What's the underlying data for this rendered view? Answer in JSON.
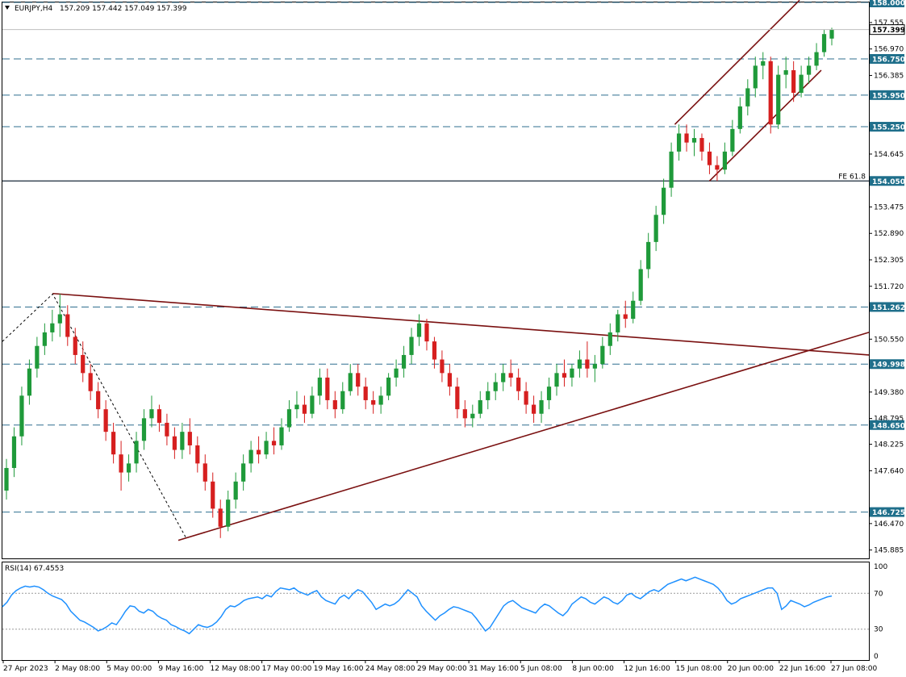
{
  "header": {
    "symbol": "EURJPY,H4",
    "ohlc": "157.209 157.442 157.049 157.399"
  },
  "rsi": {
    "label": "RSI(14) 67.4553",
    "scale_labels": [
      "100",
      "70",
      "30",
      "0"
    ],
    "levels": [
      70,
      30
    ],
    "line_color": "#1e90ff",
    "values": [
      55,
      60,
      68,
      73,
      76,
      78,
      77,
      78,
      77,
      74,
      70,
      67,
      65,
      63,
      58,
      50,
      45,
      40,
      38,
      35,
      32,
      28,
      30,
      33,
      37,
      35,
      42,
      50,
      56,
      55,
      50,
      48,
      52,
      50,
      45,
      42,
      40,
      35,
      33,
      30,
      28,
      25,
      30,
      35,
      33,
      32,
      34,
      38,
      44,
      52,
      56,
      55,
      58,
      62,
      64,
      65,
      66,
      64,
      68,
      66,
      72,
      76,
      75,
      74,
      76,
      72,
      70,
      68,
      71,
      73,
      66,
      62,
      60,
      58,
      65,
      68,
      64,
      70,
      74,
      72,
      66,
      60,
      52,
      55,
      58,
      56,
      58,
      62,
      68,
      74,
      70,
      66,
      56,
      50,
      45,
      40,
      45,
      48,
      52,
      55,
      54,
      52,
      50,
      48,
      42,
      35,
      28,
      32,
      40,
      48,
      56,
      60,
      62,
      58,
      54,
      52,
      50,
      48,
      54,
      58,
      56,
      52,
      48,
      45,
      50,
      58,
      62,
      66,
      64,
      60,
      58,
      62,
      66,
      64,
      60,
      58,
      62,
      68,
      70,
      66,
      64,
      68,
      72,
      74,
      72,
      76,
      80,
      82,
      84,
      86,
      84,
      86,
      88,
      86,
      84,
      82,
      80,
      76,
      70,
      62,
      58,
      60,
      64,
      66,
      68,
      70,
      72,
      74,
      76,
      76,
      70,
      52,
      56,
      62,
      60,
      58,
      55,
      57,
      60,
      62,
      64,
      66,
      67
    ],
    "ylim": [
      0,
      100
    ]
  },
  "chart_data": {
    "type": "candlestick",
    "title": "EURJPY,H4",
    "ylim": [
      145.7,
      158.0
    ],
    "y_ticks": [
      "158.000",
      "157.555",
      "156.970",
      "156.385",
      "155.950",
      "155.250",
      "154.645",
      "154.050",
      "153.475",
      "152.890",
      "152.305",
      "151.720",
      "151.262",
      "150.550",
      "149.998",
      "149.380",
      "148.795",
      "148.650",
      "148.225",
      "147.640",
      "146.725",
      "146.470",
      "145.885"
    ],
    "x_tick_labels": [
      "27 Apr 2023",
      "2 May 08:00",
      "5 May 00:00",
      "9 May 16:00",
      "12 May 08:00",
      "17 May 00:00",
      "19 May 16:00",
      "24 May 08:00",
      "29 May 00:00",
      "31 May 16:00",
      "5 Jun 08:00",
      "8 Jun 00:00",
      "12 Jun 16:00",
      "15 Jun 08:00",
      "20 Jun 00:00",
      "22 Jun 16:00",
      "27 Jun 08:00"
    ],
    "current_price": "157.399",
    "horizontal_levels": [
      {
        "value": 158.0,
        "label": "158.000",
        "style": "dashed"
      },
      {
        "value": 156.75,
        "label": "156.750",
        "style": "dashed"
      },
      {
        "value": 155.95,
        "label": "155.950",
        "style": "dashed"
      },
      {
        "value": 155.25,
        "label": "155.250",
        "style": "dashed"
      },
      {
        "value": 154.05,
        "label": "154.050",
        "style": "solid",
        "annotation": "FE 61.8"
      },
      {
        "value": 151.262,
        "label": "151.262",
        "style": "dashed"
      },
      {
        "value": 149.998,
        "label": "149.998",
        "style": "dashed"
      },
      {
        "value": 148.65,
        "label": "148.650",
        "style": "dashed"
      },
      {
        "value": 146.725,
        "label": "146.725",
        "style": "dashed"
      }
    ],
    "trendlines": [
      {
        "name": "descending-resistance",
        "from": [
          0.058,
          151.56
        ],
        "to": [
          1.0,
          150.2
        ]
      },
      {
        "name": "ascending-support",
        "from": [
          0.203,
          146.1
        ],
        "to": [
          1.0,
          150.7
        ]
      },
      {
        "name": "channel-upper",
        "from": [
          0.776,
          155.3
        ],
        "to": [
          0.92,
          158.05
        ]
      },
      {
        "name": "channel-lower",
        "from": [
          0.816,
          154.05
        ],
        "to": [
          0.945,
          156.5
        ]
      }
    ],
    "fib_zigzag": [
      [
        0.0,
        150.5
      ],
      [
        0.058,
        151.55
      ],
      [
        0.212,
        146.15
      ]
    ],
    "candles": [
      [
        147.2,
        147.9,
        147.0,
        147.7
      ],
      [
        147.7,
        148.6,
        147.5,
        148.4
      ],
      [
        148.4,
        149.5,
        148.2,
        149.3
      ],
      [
        149.3,
        150.1,
        149.1,
        149.9
      ],
      [
        149.9,
        150.6,
        149.7,
        150.4
      ],
      [
        150.4,
        150.9,
        150.2,
        150.7
      ],
      [
        150.7,
        151.2,
        150.5,
        150.9
      ],
      [
        150.9,
        151.55,
        150.6,
        151.1
      ],
      [
        151.1,
        151.3,
        150.4,
        150.6
      ],
      [
        150.6,
        150.8,
        150.0,
        150.2
      ],
      [
        150.2,
        150.5,
        149.6,
        149.8
      ],
      [
        149.8,
        150.0,
        149.2,
        149.4
      ],
      [
        149.4,
        149.6,
        148.8,
        149.0
      ],
      [
        149.0,
        149.2,
        148.3,
        148.5
      ],
      [
        148.5,
        148.7,
        147.8,
        148.0
      ],
      [
        148.0,
        148.3,
        147.2,
        147.6
      ],
      [
        147.6,
        148.0,
        147.4,
        147.8
      ],
      [
        147.8,
        148.5,
        147.6,
        148.3
      ],
      [
        148.3,
        149.0,
        148.1,
        148.8
      ],
      [
        148.8,
        149.3,
        148.6,
        149.0
      ],
      [
        149.0,
        149.1,
        148.5,
        148.7
      ],
      [
        148.7,
        148.9,
        148.2,
        148.4
      ],
      [
        148.4,
        148.6,
        147.9,
        148.1
      ],
      [
        148.1,
        148.7,
        147.9,
        148.5
      ],
      [
        148.5,
        148.8,
        148.0,
        148.2
      ],
      [
        148.2,
        148.4,
        147.6,
        147.8
      ],
      [
        147.8,
        148.0,
        147.2,
        147.4
      ],
      [
        147.4,
        147.6,
        146.6,
        146.8
      ],
      [
        146.8,
        147.0,
        146.15,
        146.4
      ],
      [
        146.4,
        147.2,
        146.3,
        147.0
      ],
      [
        147.0,
        147.6,
        146.8,
        147.4
      ],
      [
        147.4,
        148.0,
        147.2,
        147.8
      ],
      [
        147.8,
        148.3,
        147.6,
        148.1
      ],
      [
        148.1,
        148.4,
        147.8,
        148.0
      ],
      [
        148.0,
        148.5,
        147.9,
        148.3
      ],
      [
        148.3,
        148.6,
        148.0,
        148.2
      ],
      [
        148.2,
        148.8,
        148.1,
        148.6
      ],
      [
        148.6,
        149.2,
        148.5,
        149.0
      ],
      [
        149.0,
        149.4,
        148.8,
        149.1
      ],
      [
        149.1,
        149.3,
        148.7,
        148.9
      ],
      [
        148.9,
        149.5,
        148.8,
        149.3
      ],
      [
        149.3,
        149.9,
        149.1,
        149.7
      ],
      [
        149.7,
        149.9,
        149.0,
        149.2
      ],
      [
        149.2,
        149.4,
        148.8,
        149.0
      ],
      [
        149.0,
        149.6,
        148.9,
        149.4
      ],
      [
        149.4,
        150.0,
        149.3,
        149.8
      ],
      [
        149.8,
        150.0,
        149.3,
        149.5
      ],
      [
        149.5,
        149.7,
        149.0,
        149.2
      ],
      [
        149.2,
        149.4,
        148.9,
        149.1
      ],
      [
        149.1,
        149.5,
        148.9,
        149.3
      ],
      [
        149.3,
        149.8,
        149.2,
        149.7
      ],
      [
        149.7,
        150.1,
        149.5,
        149.9
      ],
      [
        149.9,
        150.4,
        149.7,
        150.2
      ],
      [
        150.2,
        150.8,
        150.0,
        150.6
      ],
      [
        150.6,
        151.1,
        150.4,
        150.9
      ],
      [
        150.9,
        151.0,
        150.3,
        150.5
      ],
      [
        150.5,
        150.6,
        149.9,
        150.1
      ],
      [
        150.1,
        150.3,
        149.6,
        149.8
      ],
      [
        149.8,
        150.0,
        149.3,
        149.5
      ],
      [
        149.5,
        149.7,
        148.8,
        149.0
      ],
      [
        149.0,
        149.2,
        148.6,
        148.8
      ],
      [
        148.8,
        149.1,
        148.6,
        148.9
      ],
      [
        148.9,
        149.4,
        148.8,
        149.2
      ],
      [
        149.2,
        149.6,
        149.0,
        149.4
      ],
      [
        149.4,
        149.8,
        149.2,
        149.6
      ],
      [
        149.6,
        150.0,
        149.4,
        149.8
      ],
      [
        149.8,
        150.1,
        149.5,
        149.7
      ],
      [
        149.7,
        149.9,
        149.2,
        149.4
      ],
      [
        149.4,
        149.6,
        148.9,
        149.1
      ],
      [
        149.1,
        149.3,
        148.7,
        148.9
      ],
      [
        148.9,
        149.4,
        148.7,
        149.2
      ],
      [
        149.2,
        149.7,
        149.0,
        149.5
      ],
      [
        149.5,
        150.0,
        149.3,
        149.8
      ],
      [
        149.8,
        150.1,
        149.5,
        149.7
      ],
      [
        149.7,
        150.0,
        149.5,
        149.9
      ],
      [
        149.9,
        150.3,
        149.7,
        150.1
      ],
      [
        150.1,
        150.5,
        149.7,
        149.9
      ],
      [
        149.9,
        150.2,
        149.6,
        150.0
      ],
      [
        150.0,
        150.6,
        149.9,
        150.4
      ],
      [
        150.4,
        150.9,
        150.2,
        150.7
      ],
      [
        150.7,
        151.2,
        150.5,
        151.1
      ],
      [
        151.1,
        151.4,
        150.8,
        151.0
      ],
      [
        151.0,
        151.6,
        150.9,
        151.4
      ],
      [
        151.4,
        152.3,
        151.3,
        152.1
      ],
      [
        152.1,
        152.9,
        151.9,
        152.7
      ],
      [
        152.7,
        153.5,
        152.5,
        153.3
      ],
      [
        153.3,
        154.1,
        153.1,
        153.9
      ],
      [
        153.9,
        154.9,
        153.7,
        154.7
      ],
      [
        154.7,
        155.3,
        154.5,
        155.1
      ],
      [
        155.1,
        155.3,
        154.7,
        154.9
      ],
      [
        154.9,
        155.2,
        154.6,
        155.0
      ],
      [
        155.0,
        155.1,
        154.5,
        154.7
      ],
      [
        154.7,
        154.9,
        154.2,
        154.4
      ],
      [
        154.4,
        154.6,
        154.05,
        154.3
      ],
      [
        154.3,
        154.9,
        154.2,
        154.7
      ],
      [
        154.7,
        155.4,
        154.6,
        155.2
      ],
      [
        155.2,
        155.9,
        155.1,
        155.7
      ],
      [
        155.7,
        156.3,
        155.5,
        156.1
      ],
      [
        156.1,
        156.8,
        155.9,
        156.6
      ],
      [
        156.6,
        156.9,
        156.3,
        156.7
      ],
      [
        156.7,
        156.8,
        155.1,
        155.3
      ],
      [
        155.3,
        156.6,
        155.2,
        156.4
      ],
      [
        156.4,
        156.8,
        156.1,
        156.5
      ],
      [
        156.5,
        156.7,
        155.8,
        156.0
      ],
      [
        156.0,
        156.6,
        155.9,
        156.4
      ],
      [
        156.4,
        156.8,
        156.2,
        156.6
      ],
      [
        156.6,
        157.1,
        156.5,
        156.9
      ],
      [
        156.9,
        157.4,
        156.8,
        157.3
      ],
      [
        157.2,
        157.44,
        157.05,
        157.4
      ]
    ]
  }
}
